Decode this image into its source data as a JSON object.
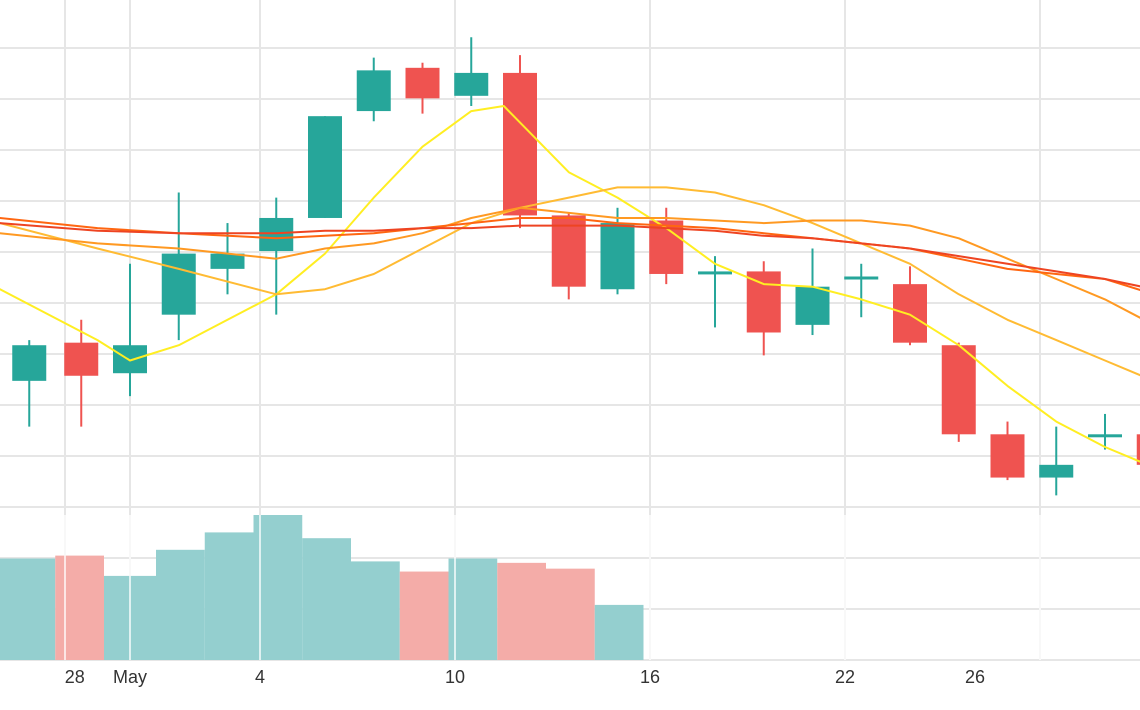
{
  "chart_data": {
    "type": "candlestick",
    "x_tick_labels": [
      {
        "day": -1.7,
        "label": "28"
      },
      {
        "day": 0,
        "label": "May"
      },
      {
        "day": 4,
        "label": "4"
      },
      {
        "day": 10,
        "label": "10"
      },
      {
        "day": 16,
        "label": "16"
      },
      {
        "day": 22,
        "label": "22"
      },
      {
        "day": 26,
        "label": "26"
      }
    ],
    "price_range": [
      0,
      100
    ],
    "candles": [
      {
        "day": -3.1,
        "open": 35.0,
        "high": 43.0,
        "low": 26.0,
        "close": 42.0
      },
      {
        "day": -1.5,
        "open": 42.5,
        "high": 47.0,
        "low": 26.0,
        "close": 36.0
      },
      {
        "day": 0,
        "open": 36.5,
        "high": 58.0,
        "low": 32.0,
        "close": 42.0
      },
      {
        "day": 1.5,
        "open": 48.0,
        "high": 72.0,
        "low": 43.0,
        "close": 60.0
      },
      {
        "day": 3,
        "open": 57.0,
        "high": 66.0,
        "low": 52.0,
        "close": 60.0
      },
      {
        "day": 4.5,
        "open": 60.5,
        "high": 71.0,
        "low": 48.0,
        "close": 67.0
      },
      {
        "day": 6,
        "open": 67.0,
        "high": 87.0,
        "low": 67.0,
        "close": 87.0
      },
      {
        "day": 7.5,
        "open": 88.0,
        "high": 98.5,
        "low": 86.0,
        "close": 96.0
      },
      {
        "day": 9,
        "open": 96.5,
        "high": 97.5,
        "low": 87.5,
        "close": 90.5
      },
      {
        "day": 10.5,
        "open": 91.0,
        "high": 102.5,
        "low": 89.0,
        "close": 95.5
      },
      {
        "day": 12,
        "open": 95.5,
        "high": 99.0,
        "low": 65.0,
        "close": 67.5
      },
      {
        "day": 13.5,
        "open": 67.5,
        "high": 68.0,
        "low": 51.0,
        "close": 53.5
      },
      {
        "day": 15,
        "open": 53.0,
        "high": 69.0,
        "low": 52.0,
        "close": 66.0
      },
      {
        "day": 16.5,
        "open": 66.5,
        "high": 69.0,
        "low": 54.0,
        "close": 56.0
      },
      {
        "day": 18,
        "open": 56.0,
        "high": 59.5,
        "low": 45.5,
        "close": 56.5
      },
      {
        "day": 19.5,
        "open": 56.5,
        "high": 58.5,
        "low": 40.0,
        "close": 44.5
      },
      {
        "day": 21,
        "open": 46.0,
        "high": 61.0,
        "low": 44.0,
        "close": 53.5
      },
      {
        "day": 22.5,
        "open": 55.5,
        "high": 58.0,
        "low": 47.5,
        "close": 55.5
      },
      {
        "day": 24,
        "open": 54.0,
        "high": 57.5,
        "low": 42.0,
        "close": 42.5
      },
      {
        "day": 25.5,
        "open": 42.0,
        "high": 42.5,
        "low": 23.0,
        "close": 24.5
      },
      {
        "day": 27,
        "open": 24.5,
        "high": 27.0,
        "low": 15.5,
        "close": 16.0
      },
      {
        "day": 28.5,
        "open": 16.0,
        "high": 26.0,
        "low": 12.5,
        "close": 18.5
      },
      {
        "day": 30,
        "open": 24.5,
        "high": 28.5,
        "low": 21.5,
        "close": 24.5
      },
      {
        "day": 31.5,
        "open": 24.5,
        "high": 30.0,
        "low": 16.5,
        "close": 18.5
      }
    ],
    "moving_averages": [
      {
        "color": "#ffee22",
        "points": [
          [
            -4,
            53
          ],
          [
            -1,
            43
          ],
          [
            0,
            39
          ],
          [
            1.5,
            42
          ],
          [
            3,
            47
          ],
          [
            4.5,
            52
          ],
          [
            6,
            60
          ],
          [
            7.5,
            71
          ],
          [
            9,
            81
          ],
          [
            10.5,
            88
          ],
          [
            11.5,
            89
          ],
          [
            13.5,
            76
          ],
          [
            15,
            71
          ],
          [
            16.5,
            65
          ],
          [
            18,
            58
          ],
          [
            19.5,
            54
          ],
          [
            21,
            53.5
          ],
          [
            22.5,
            51
          ],
          [
            24,
            48
          ],
          [
            25.5,
            42
          ],
          [
            27,
            34
          ],
          [
            28.5,
            27
          ],
          [
            30,
            22
          ],
          [
            31.5,
            18
          ]
        ]
      },
      {
        "color": "#ffbb33",
        "points": [
          [
            -4,
            66
          ],
          [
            -1,
            61
          ],
          [
            1.5,
            57
          ],
          [
            4.5,
            52
          ],
          [
            6,
            53
          ],
          [
            7.5,
            56
          ],
          [
            9,
            61
          ],
          [
            10.5,
            66
          ],
          [
            12,
            69
          ],
          [
            13.5,
            71
          ],
          [
            15,
            73
          ],
          [
            16.5,
            73
          ],
          [
            18,
            72
          ],
          [
            19.5,
            69.5
          ],
          [
            21,
            66
          ],
          [
            22.5,
            62
          ],
          [
            24,
            58
          ],
          [
            25.5,
            52
          ],
          [
            27,
            47
          ],
          [
            28.5,
            43
          ],
          [
            30,
            39
          ],
          [
            31.5,
            35
          ]
        ]
      },
      {
        "color": "#ff9922",
        "points": [
          [
            -4,
            64
          ],
          [
            -1,
            62
          ],
          [
            1.5,
            61
          ],
          [
            4.5,
            59
          ],
          [
            6,
            61
          ],
          [
            7.5,
            62
          ],
          [
            9,
            64
          ],
          [
            10.5,
            67
          ],
          [
            12,
            69
          ],
          [
            13.5,
            68
          ],
          [
            15,
            67
          ],
          [
            16.5,
            67
          ],
          [
            18,
            66.5
          ],
          [
            19.5,
            66
          ],
          [
            21,
            66.5
          ],
          [
            22.5,
            66.5
          ],
          [
            24,
            65.5
          ],
          [
            25.5,
            63
          ],
          [
            27,
            59
          ],
          [
            28.5,
            55
          ],
          [
            30,
            51
          ],
          [
            31.5,
            46
          ]
        ]
      },
      {
        "color": "#ff6611",
        "points": [
          [
            -4,
            67
          ],
          [
            -1,
            65
          ],
          [
            1.5,
            64
          ],
          [
            4.5,
            63
          ],
          [
            6,
            63.5
          ],
          [
            7.5,
            64
          ],
          [
            9,
            65
          ],
          [
            10.5,
            66
          ],
          [
            12,
            67
          ],
          [
            13.5,
            67
          ],
          [
            15,
            66
          ],
          [
            16.5,
            65.5
          ],
          [
            18,
            65
          ],
          [
            19.5,
            64
          ],
          [
            21,
            63
          ],
          [
            22.5,
            62
          ],
          [
            24,
            61
          ],
          [
            25.5,
            59
          ],
          [
            27,
            57
          ],
          [
            28.5,
            56
          ],
          [
            30,
            55
          ],
          [
            31.5,
            52
          ]
        ]
      },
      {
        "color": "#ee4422",
        "points": [
          [
            -4,
            66
          ],
          [
            -1,
            64.5
          ],
          [
            1.5,
            64
          ],
          [
            4.5,
            64
          ],
          [
            6,
            64.5
          ],
          [
            7.5,
            64.5
          ],
          [
            9,
            65
          ],
          [
            10.5,
            65
          ],
          [
            12,
            65.5
          ],
          [
            13.5,
            65.5
          ],
          [
            15,
            65.5
          ],
          [
            16.5,
            65
          ],
          [
            18,
            64.5
          ],
          [
            19.5,
            63.5
          ],
          [
            21,
            63
          ],
          [
            22.5,
            62
          ],
          [
            24,
            61
          ],
          [
            25.5,
            59.5
          ],
          [
            27,
            58
          ],
          [
            28.5,
            56.5
          ],
          [
            30,
            55
          ],
          [
            31.5,
            53
          ]
        ]
      }
    ],
    "volume_range": [
      0,
      100
    ],
    "volume_bars": [
      {
        "start": -4,
        "end": -2.3,
        "value": 70,
        "direction": "up"
      },
      {
        "start": -2.3,
        "end": -0.8,
        "value": 72,
        "direction": "down"
      },
      {
        "start": -0.8,
        "end": 0.8,
        "value": 58,
        "direction": "up"
      },
      {
        "start": 0.8,
        "end": 2.3,
        "value": 76,
        "direction": "up"
      },
      {
        "start": 2.3,
        "end": 3.8,
        "value": 88,
        "direction": "up"
      },
      {
        "start": 3.8,
        "end": 5.3,
        "value": 100,
        "direction": "up"
      },
      {
        "start": 5.3,
        "end": 6.8,
        "value": 84,
        "direction": "up"
      },
      {
        "start": 6.8,
        "end": 8.3,
        "value": 68,
        "direction": "up"
      },
      {
        "start": 8.3,
        "end": 9.8,
        "value": 61,
        "direction": "down"
      },
      {
        "start": 9.8,
        "end": 11.3,
        "value": 70,
        "direction": "up"
      },
      {
        "start": 11.3,
        "end": 12.8,
        "value": 67,
        "direction": "down"
      },
      {
        "start": 12.8,
        "end": 14.3,
        "value": 63,
        "direction": "down"
      },
      {
        "start": 14.3,
        "end": 15.8,
        "value": 38,
        "direction": "up"
      }
    ],
    "grid": true,
    "colors": {
      "up": "#26a69a",
      "down": "#ef5350",
      "volume_up": "#94cfcf",
      "volume_down": "#f4aca8",
      "grid": "#e6e6e6"
    }
  }
}
